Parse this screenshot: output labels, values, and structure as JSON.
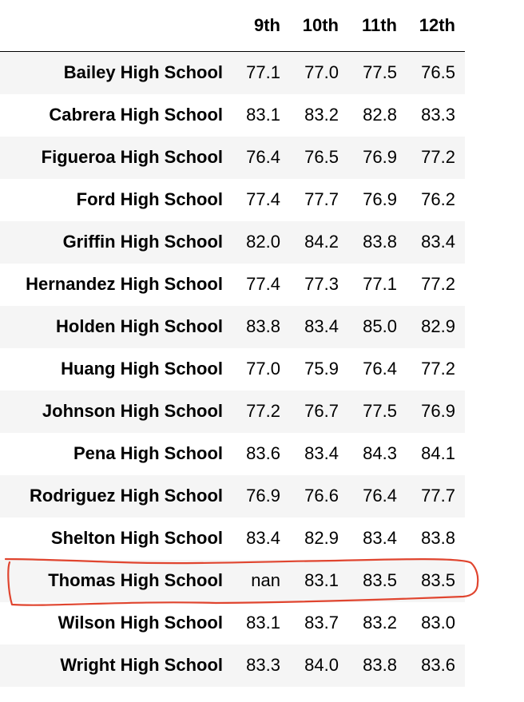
{
  "table": {
    "columns": [
      "9th",
      "10th",
      "11th",
      "12th"
    ],
    "rows": [
      {
        "school": "Bailey High School",
        "values": [
          "77.1",
          "77.0",
          "77.5",
          "76.5"
        ]
      },
      {
        "school": "Cabrera High School",
        "values": [
          "83.1",
          "83.2",
          "82.8",
          "83.3"
        ]
      },
      {
        "school": "Figueroa High School",
        "values": [
          "76.4",
          "76.5",
          "76.9",
          "77.2"
        ]
      },
      {
        "school": "Ford High School",
        "values": [
          "77.4",
          "77.7",
          "76.9",
          "76.2"
        ]
      },
      {
        "school": "Griffin High School",
        "values": [
          "82.0",
          "84.2",
          "83.8",
          "83.4"
        ]
      },
      {
        "school": "Hernandez High School",
        "values": [
          "77.4",
          "77.3",
          "77.1",
          "77.2"
        ]
      },
      {
        "school": "Holden High School",
        "values": [
          "83.8",
          "83.4",
          "85.0",
          "82.9"
        ]
      },
      {
        "school": "Huang High School",
        "values": [
          "77.0",
          "75.9",
          "76.4",
          "77.2"
        ]
      },
      {
        "school": "Johnson High School",
        "values": [
          "77.2",
          "76.7",
          "77.5",
          "76.9"
        ]
      },
      {
        "school": "Pena High School",
        "values": [
          "83.6",
          "83.4",
          "84.3",
          "84.1"
        ]
      },
      {
        "school": "Rodriguez High School",
        "values": [
          "76.9",
          "76.6",
          "76.4",
          "77.7"
        ]
      },
      {
        "school": "Shelton High School",
        "values": [
          "83.4",
          "82.9",
          "83.4",
          "83.8"
        ]
      },
      {
        "school": "Thomas High School",
        "values": [
          "nan",
          "83.1",
          "83.5",
          "83.5"
        ]
      },
      {
        "school": "Wilson High School",
        "values": [
          "83.1",
          "83.7",
          "83.2",
          "83.0"
        ]
      },
      {
        "school": "Wright High School",
        "values": [
          "83.3",
          "84.0",
          "83.8",
          "83.6"
        ]
      }
    ]
  },
  "colors": {
    "stripe": "#f5f5f5",
    "annotation": "#e0452f"
  },
  "icons": {
    "annotation": "hand-drawn-circle"
  }
}
